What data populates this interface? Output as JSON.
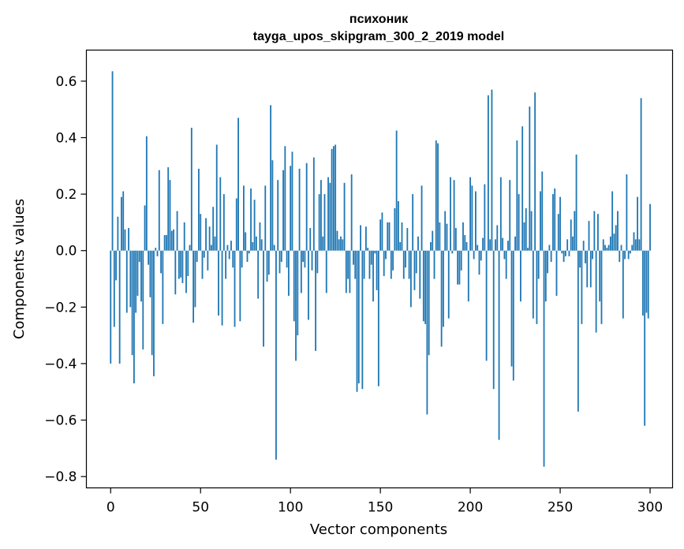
{
  "chart_data": {
    "type": "bar",
    "title_line1": "психоник",
    "title_line2": "tayga_upos_skipgram_300_2_2019 model",
    "xlabel": "Vector components",
    "ylabel": "Components values",
    "xlim": [
      -13.5,
      312.5
    ],
    "ylim": [
      -0.84,
      0.71
    ],
    "xticks": [
      {
        "value": 0,
        "label": "0"
      },
      {
        "value": 50,
        "label": "50"
      },
      {
        "value": 100,
        "label": "100"
      },
      {
        "value": 150,
        "label": "150"
      },
      {
        "value": 200,
        "label": "200"
      },
      {
        "value": 250,
        "label": "250"
      },
      {
        "value": 300,
        "label": "300"
      }
    ],
    "yticks": [
      {
        "value": -0.8,
        "label": "−0.8"
      },
      {
        "value": -0.6,
        "label": "−0.6"
      },
      {
        "value": -0.4,
        "label": "−0.4"
      },
      {
        "value": -0.2,
        "label": "−0.2"
      },
      {
        "value": 0.0,
        "label": "0.0"
      },
      {
        "value": 0.2,
        "label": "0.2"
      },
      {
        "value": 0.4,
        "label": "0.4"
      },
      {
        "value": 0.6,
        "label": "0.6"
      }
    ],
    "bar_color": "#1f77b4",
    "values": [
      -0.4,
      0.635,
      -0.27,
      -0.105,
      0.12,
      -0.4,
      0.19,
      0.21,
      0.075,
      -0.22,
      0.08,
      -0.2,
      -0.37,
      -0.47,
      -0.22,
      -0.16,
      -0.04,
      -0.18,
      -0.35,
      0.16,
      0.405,
      -0.05,
      -0.165,
      -0.37,
      -0.445,
      0.01,
      -0.02,
      0.285,
      -0.08,
      -0.26,
      0.055,
      0.055,
      0.295,
      0.25,
      0.07,
      0.075,
      -0.155,
      0.14,
      -0.1,
      -0.095,
      -0.115,
      0.1,
      -0.15,
      -0.09,
      0.02,
      0.435,
      -0.255,
      -0.2,
      -0.04,
      0.29,
      0.13,
      -0.1,
      -0.025,
      0.115,
      -0.07,
      0.085,
      0.02,
      0.155,
      0.05,
      0.375,
      -0.23,
      0.26,
      -0.265,
      0.2,
      -0.1,
      0.02,
      -0.03,
      0.035,
      -0.06,
      -0.27,
      0.185,
      0.47,
      -0.25,
      -0.06,
      0.23,
      0.065,
      -0.04,
      -0.01,
      0.22,
      0.03,
      0.18,
      0.05,
      -0.17,
      0.1,
      0.04,
      -0.34,
      0.23,
      -0.11,
      -0.085,
      0.515,
      0.32,
      0.02,
      -0.74,
      0.25,
      -0.08,
      -0.04,
      0.285,
      0.37,
      -0.06,
      -0.16,
      0.3,
      0.35,
      -0.25,
      -0.39,
      -0.3,
      0.29,
      -0.15,
      -0.04,
      -0.06,
      0.31,
      -0.245,
      0.08,
      -0.07,
      0.33,
      -0.355,
      -0.08,
      0.2,
      0.25,
      0.05,
      0.2,
      -0.15,
      0.26,
      0.24,
      0.36,
      0.37,
      0.375,
      0.07,
      0.04,
      0.05,
      0.04,
      0.24,
      -0.15,
      -0.1,
      -0.15,
      0.27,
      -0.05,
      -0.1,
      -0.5,
      -0.47,
      0.09,
      -0.49,
      -0.1,
      0.085,
      0.01,
      -0.1,
      -0.05,
      -0.18,
      -0.01,
      -0.14,
      -0.48,
      0.11,
      0.135,
      -0.09,
      -0.03,
      0.1,
      0.1,
      -0.1,
      -0.07,
      0.15,
      0.425,
      0.175,
      0.03,
      0.1,
      -0.1,
      -0.06,
      0.08,
      -0.1,
      -0.2,
      0.2,
      -0.14,
      -0.08,
      0.05,
      -0.17,
      0.23,
      -0.25,
      -0.26,
      -0.58,
      -0.37,
      0.03,
      0.07,
      -0.1,
      0.39,
      0.38,
      0.1,
      -0.34,
      -0.27,
      0.14,
      0.095,
      -0.24,
      0.26,
      -0.01,
      0.25,
      0.08,
      -0.12,
      -0.12,
      -0.07,
      0.1,
      0.055,
      0.03,
      -0.18,
      0.26,
      0.23,
      -0.03,
      0.21,
      0.02,
      -0.085,
      -0.035,
      0.045,
      0.235,
      -0.39,
      0.55,
      0.04,
      0.57,
      -0.49,
      0.04,
      0.09,
      -0.67,
      0.26,
      0.045,
      -0.03,
      -0.1,
      0.035,
      0.25,
      -0.41,
      -0.46,
      0.05,
      0.39,
      0.2,
      -0.18,
      0.44,
      0.1,
      0.15,
      0.01,
      0.51,
      0.14,
      -0.24,
      0.56,
      -0.26,
      -0.1,
      0.21,
      0.28,
      -0.765,
      -0.18,
      -0.08,
      0.02,
      -0.04,
      0.2,
      0.22,
      -0.16,
      0.13,
      0.19,
      -0.01,
      -0.04,
      -0.02,
      0.04,
      -0.02,
      0.11,
      0.05,
      0.14,
      0.34,
      -0.57,
      -0.06,
      -0.26,
      0.035,
      -0.045,
      -0.13,
      0.105,
      -0.13,
      -0.03,
      0.14,
      -0.29,
      0.13,
      -0.18,
      -0.26,
      0.04,
      0.02,
      0.01,
      0.02,
      0.05,
      0.21,
      0.06,
      0.09,
      0.14,
      -0.04,
      0.02,
      -0.24,
      -0.03,
      0.27,
      -0.03,
      -0.01,
      0.02,
      0.065,
      0.04,
      0.19,
      0.04,
      0.54,
      -0.23,
      -0.62,
      -0.22,
      -0.24,
      0.165
    ]
  }
}
